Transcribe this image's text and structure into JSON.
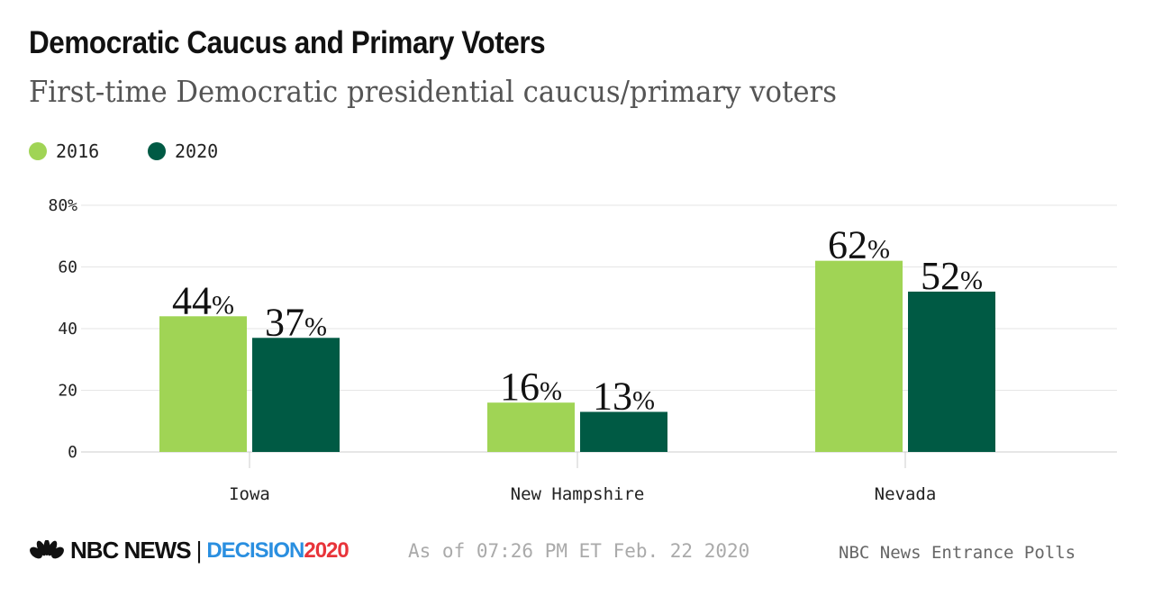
{
  "title": "Democratic Caucus and Primary Voters",
  "subtitle": "First-time Democratic presidential caucus/primary voters",
  "footer": {
    "brand": "NBC NEWS",
    "decision": "DECISION",
    "year": "2020",
    "timestamp": "As of 07:26 PM ET Feb. 22 2020",
    "source": "NBC News Entrance Polls"
  },
  "chart_data": {
    "type": "bar",
    "categories": [
      "Iowa",
      "New Hampshire",
      "Nevada"
    ],
    "series": [
      {
        "name": "2016",
        "values": [
          44,
          16,
          62
        ],
        "color": "#a0d455"
      },
      {
        "name": "2020",
        "values": [
          37,
          13,
          52
        ],
        "color": "#005a44"
      }
    ],
    "ylim": [
      0,
      80
    ],
    "yticks": [
      "0",
      "20",
      "40",
      "60",
      "80%"
    ],
    "data_label_suffix": "%",
    "grid": true,
    "legend": "top-left"
  }
}
